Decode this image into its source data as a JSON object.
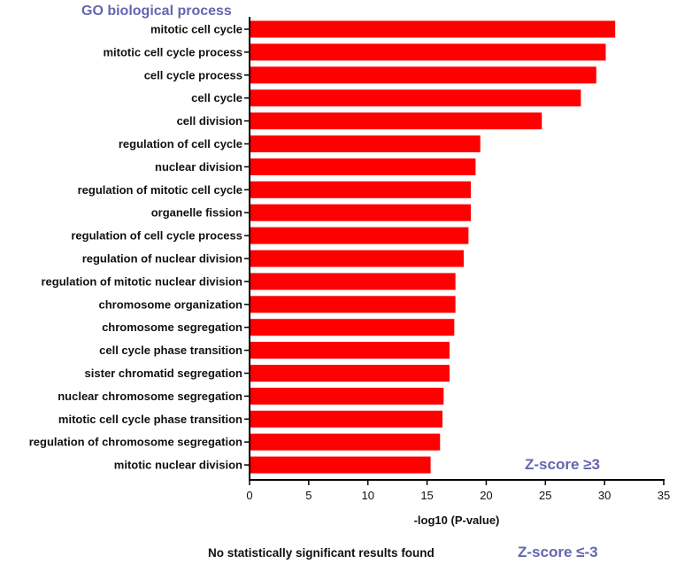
{
  "chart_data": {
    "type": "bar",
    "orientation": "horizontal",
    "title": "GO biological process",
    "xlabel": "-log10 (P-value)",
    "xlim": [
      0,
      35
    ],
    "xticks": [
      0,
      5,
      10,
      15,
      20,
      25,
      30,
      35
    ],
    "grid": false,
    "categories": [
      "mitotic cell cycle",
      "mitotic cell cycle process",
      "cell cycle process",
      "cell cycle",
      "cell division",
      "regulation of cell cycle",
      "nuclear division",
      "regulation of mitotic cell cycle",
      "organelle fission",
      "regulation of cell cycle process",
      "regulation of nuclear division",
      "regulation of mitotic nuclear division",
      "chromosome organization",
      "chromosome segregation",
      "cell cycle phase transition",
      "sister chromatid segregation",
      "nuclear chromosome segregation",
      "mitotic cell cycle phase transition",
      "regulation of chromosome segregation",
      "mitotic nuclear division"
    ],
    "values": [
      30.9,
      30.1,
      29.3,
      28.0,
      24.7,
      19.5,
      19.1,
      18.7,
      18.7,
      18.5,
      18.1,
      17.4,
      17.4,
      17.3,
      16.9,
      16.9,
      16.4,
      16.3,
      16.1,
      15.3
    ],
    "annotations": {
      "upper_panel": "Z-score ≥3",
      "lower_panel": "Z-score ≤-3",
      "lower_message": "No statistically significant results found"
    },
    "colors": {
      "bar": "#ff0000",
      "title": "#6466b0",
      "axis": "#000000"
    }
  }
}
